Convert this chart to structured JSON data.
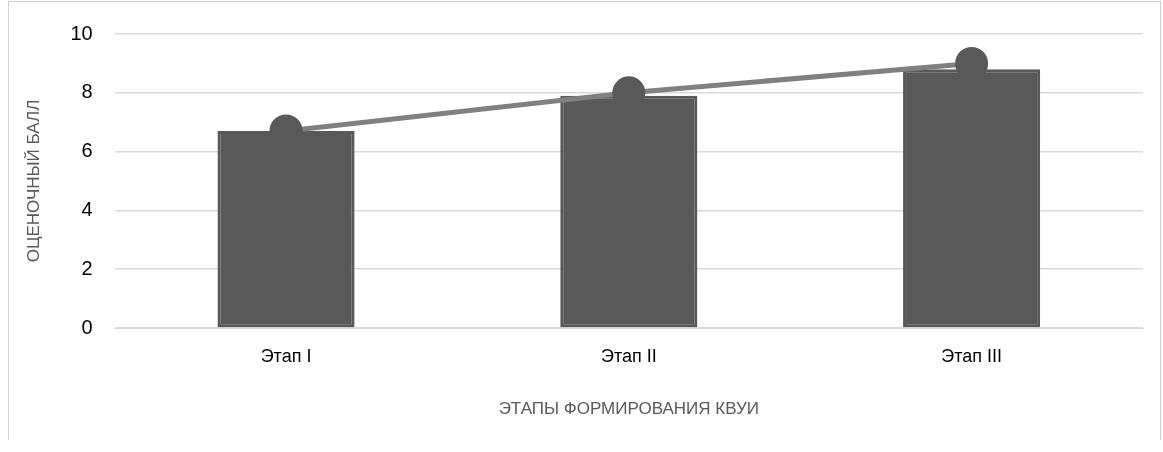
{
  "chart_data": {
    "type": "bar",
    "xlabel": "ЭТАПЫ ФОРМИРОВАНИЯ КВУИ",
    "ylabel": "ОЦЕНОЧНЫЙ БАЛЛ",
    "categories": [
      "Этап I",
      "Этап II",
      "Этап III"
    ],
    "series": [
      {
        "color": "#595959",
        "values": [
          6.7,
          7.9,
          8.8
        ]
      },
      {
        "type": "line",
        "color": "#808080",
        "values": [
          6.7,
          8.0,
          9.0
        ],
        "marker": "circle"
      }
    ],
    "ylim": [
      0,
      10
    ],
    "yticks": [
      0,
      2,
      4,
      6,
      8,
      10
    ],
    "grid": "y",
    "legend": false
  }
}
